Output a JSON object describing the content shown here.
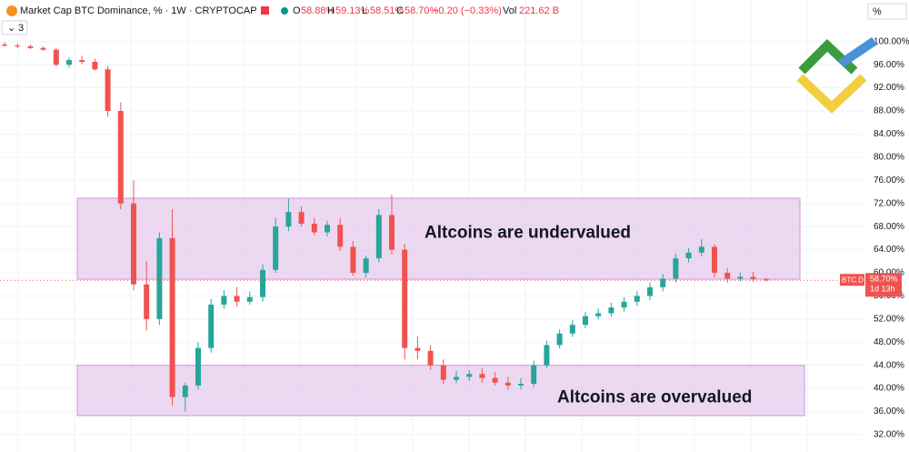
{
  "chart_data": {
    "type": "candlestick",
    "title": "Market Cap BTC Dominance, % · 1W · CRYPTOCAP",
    "ohlc_legend": [
      {
        "label": "O",
        "value": "58.88%"
      },
      {
        "label": "H",
        "value": "59.13%"
      },
      {
        "label": "L",
        "value": "58.51%"
      },
      {
        "label": "C",
        "value": "58.70%"
      }
    ],
    "change": "−0.20 (−0.33%)",
    "volume_label": "Vol",
    "volume": "221.62 B",
    "indicator_count": "3",
    "scale_mode": "%",
    "up_color": "#26a69a",
    "down_color": "#ef5350",
    "open": [
      99.5,
      99.3,
      99.2,
      98.9,
      98.6,
      96.0,
      96.8,
      96.5,
      95.2,
      88.0,
      72.0,
      58.0,
      52.0,
      66.0,
      38.5,
      40.5,
      47.0,
      54.5,
      56.0,
      55.0,
      55.8,
      60.5,
      68.0,
      70.5,
      68.5,
      67.0,
      68.3,
      64.5,
      60.0,
      62.5,
      70.0,
      64.0,
      47.0,
      46.5,
      44.0,
      41.5,
      42.0,
      42.5,
      41.8,
      41.0,
      40.5,
      40.8,
      44.0,
      47.5,
      49.5,
      51.0,
      52.5,
      53.0,
      54.0,
      55.0,
      56.0,
      57.5,
      59.0,
      62.5,
      63.5,
      64.5,
      60.0,
      59.0,
      59.3,
      58.88
    ],
    "high": [
      99.9,
      99.7,
      99.5,
      99.2,
      98.9,
      97.2,
      97.5,
      97.0,
      95.8,
      89.5,
      76.0,
      62.0,
      67.0,
      71.0,
      41.0,
      48.0,
      55.5,
      57.0,
      57.5,
      56.8,
      61.5,
      69.5,
      72.8,
      71.5,
      69.5,
      69.0,
      69.5,
      65.5,
      63.0,
      71.0,
      73.5,
      65.0,
      49.0,
      47.5,
      45.0,
      43.0,
      43.2,
      43.5,
      42.8,
      42.0,
      41.8,
      44.8,
      48.3,
      50.2,
      51.8,
      53.2,
      53.8,
      54.8,
      55.8,
      56.8,
      58.3,
      59.8,
      63.3,
      64.3,
      65.8,
      65.0,
      60.8,
      60.0,
      60.2,
      59.13
    ],
    "low": [
      99.1,
      98.9,
      98.7,
      98.4,
      95.7,
      95.5,
      96.1,
      95.0,
      87.0,
      71.0,
      57.0,
      50.0,
      51.0,
      37.0,
      36.0,
      39.8,
      46.2,
      53.8,
      54.2,
      54.5,
      55.0,
      60.0,
      67.2,
      68.0,
      66.5,
      66.3,
      63.8,
      59.5,
      59.2,
      61.8,
      63.2,
      45.0,
      45.0,
      43.2,
      40.8,
      40.9,
      41.3,
      41.0,
      40.5,
      39.8,
      39.8,
      40.2,
      43.5,
      46.9,
      48.9,
      50.4,
      51.9,
      52.4,
      53.3,
      54.3,
      55.3,
      56.8,
      58.3,
      61.8,
      62.8,
      59.2,
      58.3,
      58.5,
      58.4,
      58.51
    ],
    "close": [
      99.3,
      99.2,
      98.9,
      98.6,
      96.0,
      96.8,
      96.5,
      95.2,
      88.0,
      72.0,
      58.0,
      52.0,
      66.0,
      38.5,
      40.5,
      47.0,
      54.5,
      56.0,
      55.0,
      55.8,
      60.5,
      68.0,
      70.5,
      68.5,
      67.0,
      68.3,
      64.5,
      60.0,
      62.5,
      70.0,
      64.0,
      47.0,
      46.5,
      44.0,
      41.5,
      42.0,
      42.5,
      41.8,
      41.0,
      40.5,
      40.8,
      44.0,
      47.5,
      49.5,
      51.0,
      52.5,
      53.0,
      54.0,
      55.0,
      56.0,
      57.5,
      59.0,
      62.5,
      63.5,
      64.5,
      60.0,
      59.0,
      59.3,
      58.88,
      58.7
    ],
    "ylim": [
      29.0,
      107.2
    ],
    "yticks": [
      {
        "value": 32,
        "label": "32.00%"
      },
      {
        "value": 36,
        "label": "36.00%"
      },
      {
        "value": 40,
        "label": "40.00%"
      },
      {
        "value": 44,
        "label": "44.00%"
      },
      {
        "value": 48,
        "label": "48.00%"
      },
      {
        "value": 52,
        "label": "52.00%"
      },
      {
        "value": 56,
        "label": "56.00%"
      },
      {
        "value": 60,
        "label": "60.00%"
      },
      {
        "value": 64,
        "label": "64.00%"
      },
      {
        "value": 68,
        "label": "68.00%"
      },
      {
        "value": 72,
        "label": "72.00%"
      },
      {
        "value": 76,
        "label": "76.00%"
      },
      {
        "value": 80,
        "label": "80.00%"
      },
      {
        "value": 84,
        "label": "84.00%"
      },
      {
        "value": 88,
        "label": "88.00%"
      },
      {
        "value": 92,
        "label": "92.00%"
      },
      {
        "value": 96,
        "label": "96.00%"
      },
      {
        "value": 100,
        "label": "100.00%"
      }
    ],
    "grid": true,
    "zones": [
      {
        "label": "Altcoins are undervalued",
        "ylim": [
          58.9,
          72.9
        ],
        "color": "#e1bee7"
      },
      {
        "label": "Altcoins are overvalued",
        "ylim": [
          35.3,
          44.0
        ],
        "color": "#e1bee7"
      }
    ],
    "last_price": {
      "symbol": "BTC.D",
      "value": 58.7,
      "label": "58.70%",
      "countdown": "1d 13h"
    }
  }
}
